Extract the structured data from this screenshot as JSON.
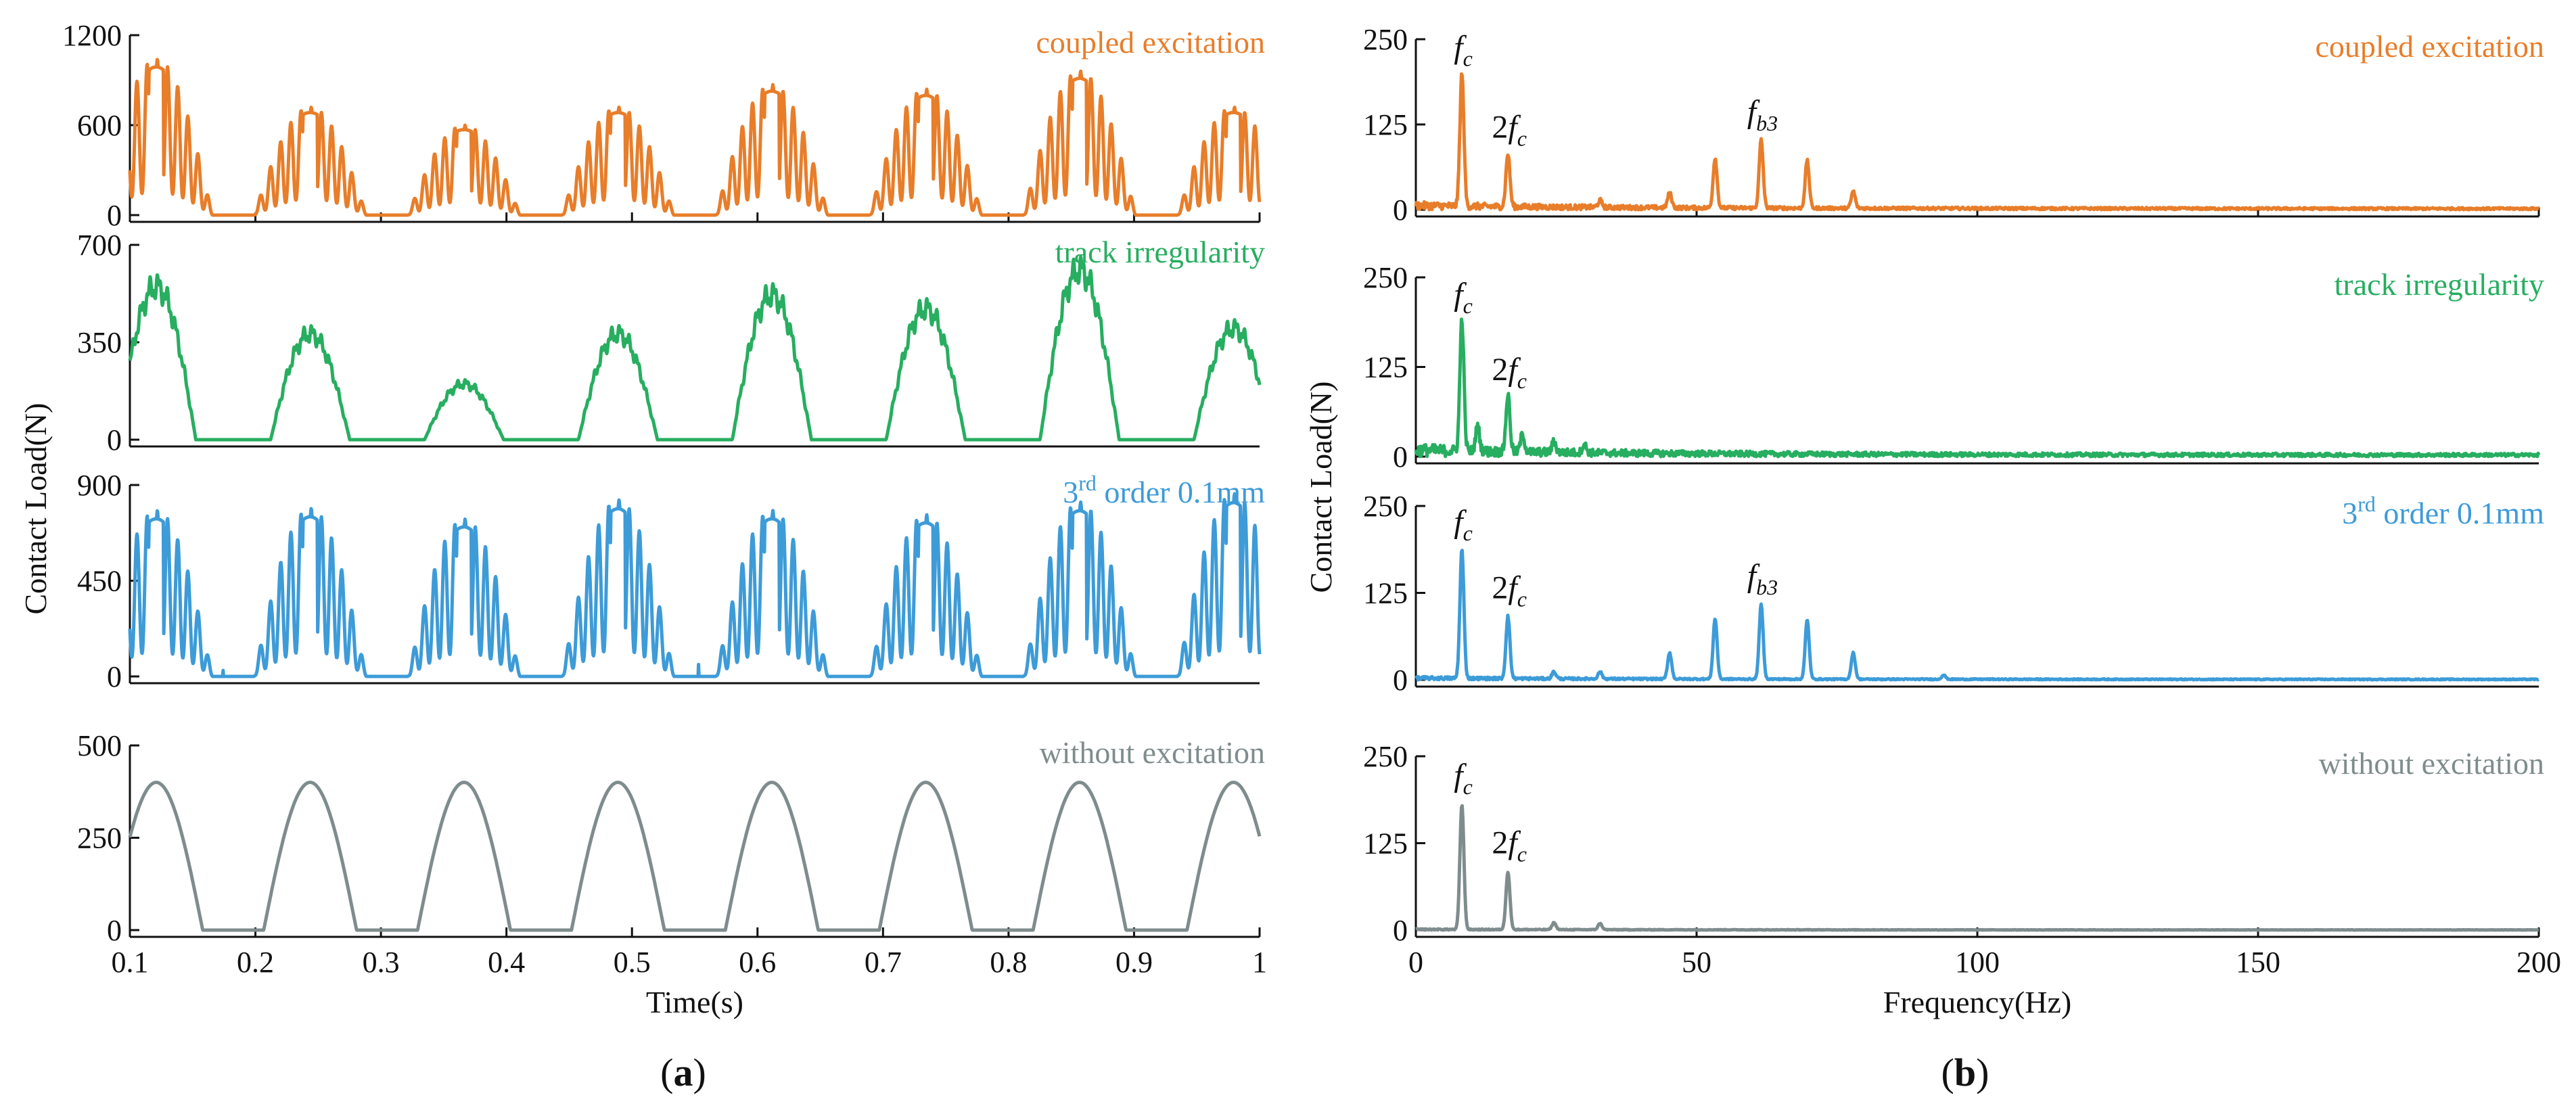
{
  "figure_labels": {
    "a": "a",
    "b": "b",
    "paren_open": "(",
    "paren_close": ")"
  },
  "chart_data": [
    {
      "type": "line",
      "panel": "a",
      "series_name": "coupled excitation",
      "title": "coupled excitation",
      "color": "#e87d2a",
      "xlim": [
        0.1,
        1.0
      ],
      "ylim": [
        0,
        1200
      ],
      "yticks": [
        0,
        600,
        1200
      ],
      "xticks": [
        0.1,
        0.2,
        0.3,
        0.4,
        0.5,
        0.6,
        0.7,
        0.8,
        0.9,
        1.0
      ],
      "xlabel": "",
      "ylabel": "",
      "waveform": {
        "kind": "multi",
        "period": 0.1226,
        "first_peak": 0.121,
        "half_width": 0.032,
        "peak_amps": [
          1040,
          720,
          600,
          720,
          870,
          840,
          960,
          720
        ]
      }
    },
    {
      "type": "line",
      "panel": "a",
      "series_name": "track irregularity",
      "title": "track irregularity",
      "color": "#27ae60",
      "xlim": [
        0.1,
        1.0
      ],
      "ylim": [
        0,
        700
      ],
      "yticks": [
        0,
        350,
        700
      ],
      "xlabel": "",
      "ylabel": "Contact Load(N)",
      "waveform": {
        "kind": "hump",
        "period": 0.1226,
        "first_peak": 0.121,
        "half_width": 0.03,
        "peak_amps": [
          550,
          380,
          200,
          380,
          520,
          470,
          610,
          400
        ]
      }
    },
    {
      "type": "line",
      "panel": "a",
      "series_name": "3rd order 0.1mm",
      "title_parts": [
        "3",
        "rd",
        " order 0.1mm"
      ],
      "color": "#3d9bd8",
      "xlim": [
        0.1,
        1.0
      ],
      "ylim": [
        0,
        900
      ],
      "yticks": [
        0,
        450,
        900
      ],
      "xlabel": "",
      "ylabel": "",
      "waveform": {
        "kind": "multi",
        "period": 0.1226,
        "first_peak": 0.121,
        "half_width": 0.032,
        "peak_amps": [
          780,
          790,
          740,
          830,
          780,
          760,
          820,
          860
        ]
      }
    },
    {
      "type": "line",
      "panel": "a",
      "series_name": "without excitation",
      "title": "without excitation",
      "color": "#7f8c8d",
      "xlim": [
        0.1,
        1.0
      ],
      "ylim": [
        0,
        500
      ],
      "yticks": [
        0,
        250,
        500
      ],
      "xticks": [
        0.1,
        0.2,
        0.3,
        0.4,
        0.5,
        0.6,
        0.7,
        0.8,
        0.9,
        1.0
      ],
      "xlabel": "Time(s)",
      "ylabel": "",
      "waveform": {
        "kind": "sine",
        "period": 0.1226,
        "first_peak": 0.121,
        "half_width": 0.037,
        "peak_amps": [
          400,
          400,
          400,
          400,
          400,
          400,
          400,
          400,
          400
        ]
      }
    },
    {
      "type": "line",
      "panel": "b",
      "series_name": "coupled excitation",
      "title": "coupled excitation",
      "color": "#e87d2a",
      "xlim": [
        0,
        200
      ],
      "ylim": [
        0,
        250
      ],
      "yticks": [
        0,
        125,
        250
      ],
      "xticks": [
        0,
        50,
        100,
        150,
        200
      ],
      "xlabel": "",
      "ylabel": "",
      "peaks": [
        [
          8.2,
          195
        ],
        [
          16.4,
          78
        ],
        [
          32.8,
          10
        ],
        [
          45.2,
          22
        ],
        [
          53.3,
          73
        ],
        [
          61.5,
          100
        ],
        [
          69.7,
          70
        ],
        [
          77.9,
          25
        ]
      ],
      "noise": 12,
      "annotations": [
        {
          "x": 8.2,
          "y": 195,
          "base": "f",
          "sub": "c"
        },
        {
          "x": 16.4,
          "y": 78,
          "base": "2f",
          "sub": "c"
        },
        {
          "x": 61.5,
          "y": 100,
          "base": "f",
          "sub": "b3"
        }
      ]
    },
    {
      "type": "line",
      "panel": "b",
      "series_name": "track irregularity",
      "title": "track irregularity",
      "color": "#27ae60",
      "xlim": [
        0,
        200
      ],
      "ylim": [
        0,
        250
      ],
      "yticks": [
        0,
        125,
        250
      ],
      "xlabel": "",
      "ylabel": "Contact Load(N)",
      "peaks": [
        [
          8.2,
          185
        ],
        [
          16.4,
          80
        ],
        [
          11,
          35
        ],
        [
          19,
          25
        ],
        [
          24.6,
          15
        ],
        [
          30,
          12
        ]
      ],
      "noise": 18,
      "annotations": [
        {
          "x": 8.2,
          "y": 185,
          "base": "f",
          "sub": "c"
        },
        {
          "x": 16.4,
          "y": 80,
          "base": "2f",
          "sub": "c"
        }
      ]
    },
    {
      "type": "line",
      "panel": "b",
      "series_name": "3rd order 0.1mm",
      "title_parts": [
        "3",
        "rd",
        " order 0.1mm"
      ],
      "color": "#3d9bd8",
      "xlim": [
        0,
        200
      ],
      "ylim": [
        0,
        250
      ],
      "yticks": [
        0,
        125,
        250
      ],
      "xlabel": "",
      "ylabel": "",
      "peaks": [
        [
          8.2,
          185
        ],
        [
          16.4,
          90
        ],
        [
          24.6,
          10
        ],
        [
          32.8,
          10
        ],
        [
          45.2,
          38
        ],
        [
          53.3,
          87
        ],
        [
          61.5,
          107
        ],
        [
          69.7,
          85
        ],
        [
          77.9,
          38
        ],
        [
          94,
          6
        ]
      ],
      "noise": 5,
      "annotations": [
        {
          "x": 8.2,
          "y": 185,
          "base": "f",
          "sub": "c"
        },
        {
          "x": 16.4,
          "y": 90,
          "base": "2f",
          "sub": "c"
        },
        {
          "x": 61.5,
          "y": 107,
          "base": "f",
          "sub": "b3"
        }
      ]
    },
    {
      "type": "line",
      "panel": "b",
      "series_name": "without excitation",
      "title": "without excitation",
      "color": "#7f8c8d",
      "xlim": [
        0,
        200
      ],
      "ylim": [
        0,
        250
      ],
      "yticks": [
        0,
        125,
        250
      ],
      "xticks": [
        0,
        50,
        100,
        150,
        200
      ],
      "xlabel": "Frequency(Hz)",
      "ylabel": "",
      "peaks": [
        [
          8.2,
          180
        ],
        [
          16.4,
          83
        ],
        [
          24.6,
          10
        ],
        [
          32.8,
          9
        ]
      ],
      "noise": 2,
      "annotations": [
        {
          "x": 8.2,
          "y": 180,
          "base": "f",
          "sub": "c"
        },
        {
          "x": 16.4,
          "y": 83,
          "base": "2f",
          "sub": "c"
        }
      ]
    }
  ]
}
